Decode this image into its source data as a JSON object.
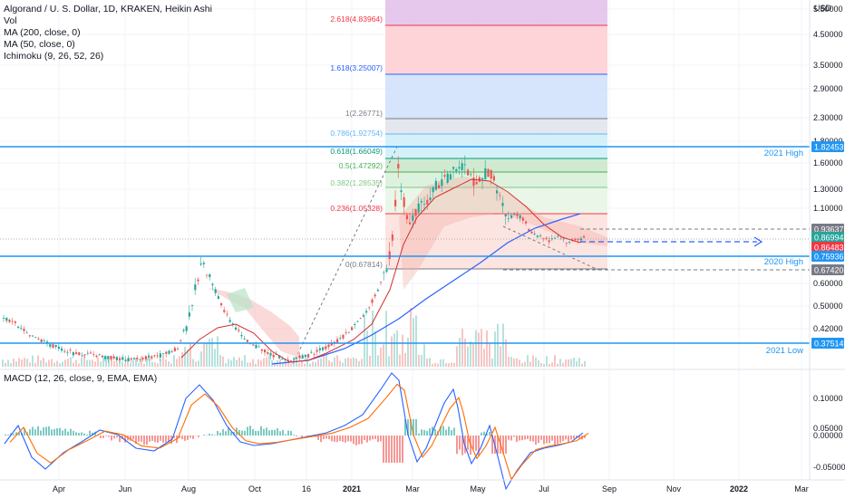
{
  "legend": {
    "title": "Algorand / U. S. Dollar, 1D, KRAKEN, Heikin Ashi",
    "vol": "Vol",
    "ma200": "MA (200, close, 0)",
    "ma50": "MA (50, close, 0)",
    "ichimoku": "Ichimoku (9, 26, 52, 26)",
    "macd": "MACD (12, 26, close, 9, EMA, EMA)"
  },
  "currency_label": "USD",
  "price_axis": [
    "5.50000",
    "4.50000",
    "3.50000",
    "2.90000",
    "2.30000",
    "1.80000",
    "1.60000",
    "1.30000",
    "1.10000",
    "0.60000",
    "0.50000",
    "0.42000"
  ],
  "macd_axis": [
    "0.10000",
    "0.05000",
    "0.00000",
    "-0.05000"
  ],
  "time_axis": [
    "Apr",
    "Jun",
    "Aug",
    "Oct",
    "16",
    "2021",
    "Mar",
    "May",
    "Jul",
    "Sep",
    "Nov",
    "2022",
    "Mar"
  ],
  "price_badges": [
    {
      "value": "1.82453",
      "color": "#2196f3"
    },
    {
      "value": "0.93637",
      "color": "#787b86"
    },
    {
      "value": "0.86994",
      "color": "#26a69a"
    },
    {
      "value": "0.86483",
      "color": "#f23645"
    },
    {
      "value": "0.75936",
      "color": "#2196f3"
    },
    {
      "value": "0.67420",
      "color": "#787b86"
    },
    {
      "value": "0.37514",
      "color": "#2196f3"
    }
  ],
  "levels": [
    {
      "label": "2021 High",
      "price": "1.82453"
    },
    {
      "label": "2020 High",
      "price": "0.75936"
    },
    {
      "label": "2021 Low",
      "price": "0.37514"
    }
  ],
  "fib_labels": [
    {
      "text": "2.618(4.83964)",
      "color": "#f23645"
    },
    {
      "text": "1.618(3.25007)",
      "color": "#2962ff"
    },
    {
      "text": "1(2.26771)",
      "color": "#787b86"
    },
    {
      "text": "0.786(1.92754)",
      "color": "#64b5f6"
    },
    {
      "text": "0.618(1.66049)",
      "color": "#089981"
    },
    {
      "text": "0.5(1.47292)",
      "color": "#4caf50"
    },
    {
      "text": "0.382(1.28535)",
      "color": "#81c784"
    },
    {
      "text": "0.236(1.05328)",
      "color": "#f23645"
    },
    {
      "text": "0(0.67814)",
      "color": "#787b86"
    }
  ],
  "colors": {
    "up": "#26a69a",
    "down": "#ef5350",
    "level_line": "#2196f3",
    "ma200": "#2962ff",
    "ma50": "#d32f2f",
    "macd": "#2962ff",
    "signal": "#ff6d00"
  }
}
